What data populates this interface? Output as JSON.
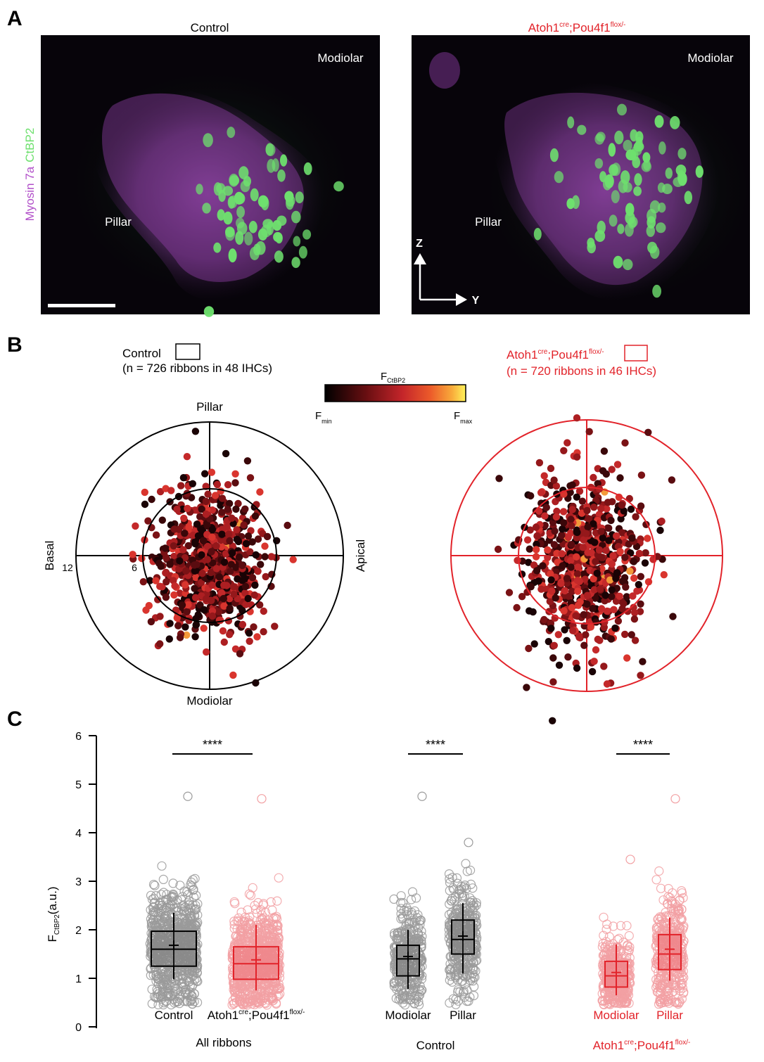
{
  "panels": {
    "A": {
      "label": "A",
      "left_title": "Control",
      "right_title_main": "Atoh1",
      "right_title_sup1": "cre",
      "right_title_mid": ";Pou4f1",
      "right_title_sup2": "flox/-",
      "stain_a": "Myosin 7a",
      "stain_b": "CtBP2",
      "modiolar": "Modiolar",
      "pillar": "Pillar",
      "axis_z": "Z",
      "axis_y": "Y",
      "colors": {
        "myosin": "#b14fc9",
        "ctbp2": "#6ee06e",
        "mutant": "#e2232a"
      }
    },
    "B": {
      "label": "B",
      "control_legend": "Control",
      "control_n": "(n = 726 ribbons in 48 IHCs)",
      "mutant_legend_main": "Atoh1",
      "mutant_legend_sup1": "cre",
      "mutant_legend_mid": ";Pou4f1",
      "mutant_legend_sup2": "flox/-",
      "mutant_n": "(n = 720 ribbons in 46 IHCs)",
      "colorbar_title_main": "F",
      "colorbar_title_sub": "CtBP2",
      "colorbar_min_main": "F",
      "colorbar_min_sub": "min",
      "colorbar_max_main": "F",
      "colorbar_max_sub": "max",
      "top": "Pillar",
      "bottom": "Modiolar",
      "left": "Basal",
      "right": "Apical",
      "ring_outer": "12",
      "ring_inner": "6"
    },
    "C": {
      "label": "C",
      "ylabel_main": "F",
      "ylabel_sub": "CtBP2",
      "ylabel_unit": "(a.u.)",
      "significance": "****",
      "group_all": "All ribbons",
      "group_control": "Control",
      "group_mutant_main": "Atoh1",
      "group_mutant_sup1": "cre",
      "group_mutant_mid": ";Pou4f1",
      "group_mutant_sup2": "flox/-"
    }
  },
  "chart_data": [
    {
      "type": "scatter",
      "panel": "B-control",
      "title": "Control",
      "n_label": "(n = 726 ribbons in 48 IHCs)",
      "ring_values": [
        6,
        12
      ],
      "axes": {
        "up": "Pillar",
        "down": "Modiolar",
        "left": "Basal",
        "right": "Apical"
      },
      "cloud": {
        "center": [
          0,
          0.8
        ],
        "sd_x": 2.5,
        "sd_y": 3.1,
        "color_scale": "F_min to F_max"
      }
    },
    {
      "type": "scatter",
      "panel": "B-mutant",
      "title": "Atoh1cre;Pou4f1flox/-",
      "n_label": "(n = 720 ribbons in 46 IHCs)",
      "ring_values": [
        6,
        12
      ],
      "cloud": {
        "center": [
          0,
          0.4
        ],
        "sd_x": 2.6,
        "sd_y": 3.9,
        "color_scale": "F_min to F_max"
      }
    },
    {
      "type": "box",
      "panel": "C",
      "ylabel": "FCtBP2(a.u.)",
      "ylim": [
        0,
        6
      ],
      "yticks": [
        0,
        1,
        2,
        3,
        4,
        5,
        6
      ],
      "categories": [
        "Control",
        "Atoh1cre;Pou4f1flox/-",
        "Modiolar",
        "Pillar",
        "Modiolar",
        "Pillar"
      ],
      "groups": [
        "All ribbons",
        "All ribbons",
        "Control",
        "Control",
        "Atoh1cre;Pou4f1flox/-",
        "Atoh1cre;Pou4f1flox/-"
      ],
      "series": [
        {
          "category": "Control",
          "color": "#000000",
          "q1": 1.25,
          "median": 1.6,
          "q3": 1.97,
          "mean": 1.68,
          "whisker_low": 0.98,
          "whisker_high": 2.35,
          "max_outlier": 4.75
        },
        {
          "category": "Atoh1cre;Pou4f1flox/-",
          "color": "#e2232a",
          "q1": 0.98,
          "median": 1.3,
          "q3": 1.65,
          "mean": 1.38,
          "whisker_low": 0.75,
          "whisker_high": 2.1,
          "max_outlier": 4.7
        },
        {
          "category": "Modiolar",
          "group": "Control",
          "color": "#000000",
          "q1": 1.05,
          "median": 1.4,
          "q3": 1.68,
          "mean": 1.45,
          "whisker_low": 0.78,
          "whisker_high": 2.0,
          "max_outlier": 4.75
        },
        {
          "category": "Pillar",
          "group": "Control",
          "color": "#000000",
          "q1": 1.5,
          "median": 1.8,
          "q3": 2.2,
          "mean": 1.87,
          "whisker_low": 1.1,
          "whisker_high": 2.55,
          "max_outlier": 3.8
        },
        {
          "category": "Modiolar",
          "group": "Atoh1cre;Pou4f1flox/-",
          "color": "#e2232a",
          "q1": 0.82,
          "median": 1.05,
          "q3": 1.35,
          "mean": 1.12,
          "whisker_low": 0.65,
          "whisker_high": 1.7,
          "max_outlier": 3.45
        },
        {
          "category": "Pillar",
          "group": "Atoh1cre;Pou4f1flox/-",
          "color": "#e2232a",
          "q1": 1.18,
          "median": 1.5,
          "q3": 1.9,
          "mean": 1.6,
          "whisker_low": 0.95,
          "whisker_high": 2.25,
          "max_outlier": 4.7
        }
      ],
      "comparisons": [
        {
          "between": [
            "Control",
            "Atoh1cre;Pou4f1flox/-"
          ],
          "label": "****"
        },
        {
          "between": [
            "Modiolar",
            "Pillar"
          ],
          "group": "Control",
          "label": "****"
        },
        {
          "between": [
            "Modiolar",
            "Pillar"
          ],
          "group": "Atoh1cre;Pou4f1flox/-",
          "label": "****"
        }
      ]
    }
  ]
}
